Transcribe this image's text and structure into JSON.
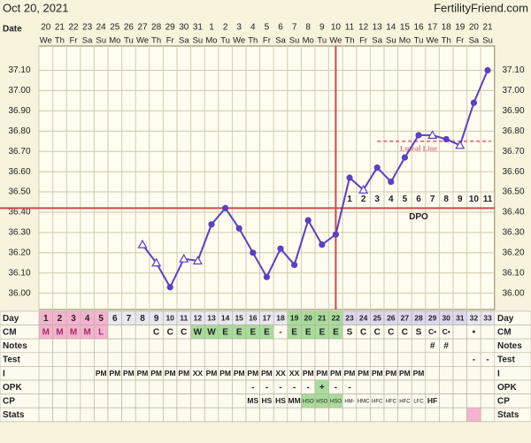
{
  "header": {
    "date": "Oct 20, 2021",
    "site": "FertilityFriend.com",
    "date_label": "Date"
  },
  "chart_data": {
    "type": "line",
    "categories": [
      "20",
      "21",
      "22",
      "23",
      "24",
      "25",
      "26",
      "27",
      "28",
      "29",
      "30",
      "31",
      "1",
      "2",
      "3",
      "4",
      "5",
      "6",
      "7",
      "8",
      "9",
      "10",
      "11",
      "12",
      "13",
      "14",
      "15",
      "16",
      "17",
      "18",
      "19",
      "20",
      "21"
    ],
    "weekdays": [
      "We",
      "Th",
      "Fr",
      "Sa",
      "Su",
      "Mo",
      "Tu",
      "We",
      "Th",
      "Fr",
      "Sa",
      "Su",
      "Mo",
      "Tu",
      "We",
      "Th",
      "Fr",
      "Sa",
      "Su",
      "Mo",
      "Tu",
      "We",
      "Th",
      "Fr",
      "Sa",
      "Su",
      "Mo",
      "Tu",
      "We",
      "Th",
      "Fr",
      "Sa",
      "Su"
    ],
    "values": [
      null,
      null,
      null,
      null,
      null,
      null,
      null,
      36.24,
      36.15,
      36.03,
      36.17,
      36.16,
      36.34,
      36.42,
      36.32,
      36.2,
      36.08,
      36.22,
      36.14,
      36.36,
      36.24,
      36.29,
      36.57,
      36.51,
      36.62,
      36.55,
      36.67,
      36.78,
      36.78,
      36.76,
      36.73,
      36.94,
      37.1
    ],
    "markers": [
      null,
      null,
      null,
      null,
      null,
      null,
      null,
      "triangle",
      "triangle",
      "dot",
      "triangle",
      "triangle",
      "dot",
      "dot",
      "dot",
      "dot",
      "dot",
      "dot",
      "dot",
      "dot",
      "dot",
      "dot",
      "dot",
      "triangle",
      "dot",
      "dot",
      "dot",
      "dot",
      "triangle",
      "dot",
      "triangle",
      "dot",
      "dot"
    ],
    "color": "#5b3fc4",
    "ylim": [
      35.92,
      37.22
    ],
    "yticks": [
      {
        "value": 36.0,
        "label": "36.00"
      },
      {
        "value": 36.1,
        "label": "36.10"
      },
      {
        "value": 36.2,
        "label": "36.20"
      },
      {
        "value": 36.3,
        "label": "36.30"
      },
      {
        "value": 36.4,
        "label": "36.40"
      },
      {
        "value": 36.5,
        "label": "36.50"
      },
      {
        "value": 36.6,
        "label": "36.60"
      },
      {
        "value": 36.7,
        "label": "36.70"
      },
      {
        "value": 36.8,
        "label": "36.80"
      },
      {
        "value": 36.9,
        "label": "36.90"
      },
      {
        "value": 37.0,
        "label": "37.00"
      },
      {
        "value": 37.1,
        "label": "37.10"
      }
    ],
    "grid": true,
    "coverline": 36.42,
    "ovulation_index": 21,
    "dpo_labels": [
      "1",
      "2",
      "3",
      "4",
      "5",
      "6",
      "7",
      "8",
      "9",
      "10",
      "11"
    ],
    "dpo_title": "DPO",
    "luteal_line": {
      "value": 36.75,
      "label": "Luteal Line"
    }
  },
  "table": {
    "rows": [
      {
        "label": "Day",
        "cells": [
          "1",
          "2",
          "3",
          "4",
          "5",
          "6",
          "7",
          "8",
          "9",
          "10",
          "11",
          "12",
          "13",
          "14",
          "15",
          "16",
          "17",
          "18",
          "19",
          "20",
          "21",
          "22",
          "23",
          "24",
          "25",
          "26",
          "27",
          "28",
          "29",
          "30",
          "31",
          "32",
          "33"
        ],
        "fills": [
          "#f5b3cf",
          "#f5b3cf",
          "#f5b3cf",
          "#f5b3cf",
          "#f5b3cf",
          "#e9e7f2",
          "#e9e7f2",
          "#e9e7f2",
          "#e9e7f2",
          "#e9e7f2",
          "#e9e7f2",
          "#e9e7f2",
          "#e9e7f2",
          "#e9e7f2",
          "#e9e7f2",
          "#e9e7f2",
          "#e9e7f2",
          "#e9e7f2",
          "#a8dc9c",
          "#a8dc9c",
          "#a8dc9c",
          "#a8dc9c",
          "#ddd8f0",
          "#ddd8f0",
          "#ddd8f0",
          "#ddd8f0",
          "#ddd8f0",
          "#ddd8f0",
          "#ddd8f0",
          "#ddd8f0",
          "#ddd8f0",
          "#e9e7f2",
          "#e9e7f2"
        ]
      },
      {
        "label": "CM",
        "cells": [
          "M",
          "M",
          "M",
          "M",
          "L",
          null,
          null,
          null,
          "C",
          "C",
          "C",
          "W",
          "W",
          "E",
          "E",
          "E",
          "E",
          "-",
          "E",
          "E",
          "E",
          "E",
          "S",
          "C",
          "C",
          "C",
          "C",
          "S",
          "C•",
          "C•",
          null,
          "•",
          null
        ],
        "fills": [
          "#f5b3cf",
          "#f5b3cf",
          "#f5b3cf",
          "#f5b3cf",
          "#f5b3cf",
          null,
          null,
          null,
          null,
          null,
          null,
          "#a8dc9c",
          "#a8dc9c",
          "#a8dc9c",
          "#a8dc9c",
          "#a8dc9c",
          "#a8dc9c",
          null,
          "#a8dc9c",
          "#a8dc9c",
          "#a8dc9c",
          "#a8dc9c",
          null,
          null,
          null,
          null,
          null,
          null,
          null,
          null,
          null,
          null,
          null
        ]
      },
      {
        "label": "Notes",
        "cells": [
          null,
          null,
          null,
          null,
          null,
          null,
          null,
          null,
          null,
          null,
          null,
          null,
          null,
          null,
          null,
          null,
          null,
          null,
          null,
          null,
          null,
          null,
          null,
          null,
          null,
          null,
          null,
          null,
          "#",
          "#",
          null,
          null,
          null
        ]
      },
      {
        "label": "Test",
        "cells": [
          null,
          null,
          null,
          null,
          null,
          null,
          null,
          null,
          null,
          null,
          null,
          null,
          null,
          null,
          null,
          null,
          null,
          null,
          null,
          null,
          null,
          null,
          null,
          null,
          null,
          null,
          null,
          null,
          null,
          null,
          null,
          "-",
          "-"
        ]
      },
      {
        "label": "I",
        "cells": [
          null,
          null,
          null,
          null,
          "PM",
          "PM",
          "PM",
          "PM",
          "PM",
          "PM",
          "PM",
          "XX",
          "PM",
          "PM",
          "PM",
          "PM",
          "PM",
          "XX",
          "XX",
          "PM",
          "PM",
          "PM",
          "PM",
          "PM",
          "PM",
          "PM",
          "PM",
          "PM",
          null,
          null,
          null,
          null,
          null
        ]
      },
      {
        "label": "OPK",
        "cells": [
          null,
          null,
          null,
          null,
          null,
          null,
          null,
          null,
          null,
          null,
          null,
          null,
          null,
          null,
          null,
          "-",
          "-",
          "-",
          "-",
          "-",
          "+",
          "-",
          "-",
          null,
          null,
          null,
          null,
          null,
          null,
          null,
          null,
          null,
          null
        ],
        "fills": [
          null,
          null,
          null,
          null,
          null,
          null,
          null,
          null,
          null,
          null,
          null,
          null,
          null,
          null,
          null,
          null,
          null,
          null,
          null,
          null,
          "#a8dc9c",
          null,
          null,
          null,
          null,
          null,
          null,
          null,
          null,
          null,
          null,
          null,
          null
        ]
      },
      {
        "label": "CP",
        "cells": [
          null,
          null,
          null,
          null,
          null,
          null,
          null,
          null,
          null,
          null,
          null,
          null,
          null,
          null,
          null,
          "MS",
          "HS",
          "HS",
          "MM",
          "HSO",
          "HSO",
          "HSO",
          "HM-",
          "HMC",
          "HFC",
          "HFC",
          "HFC",
          "LFC",
          "HF",
          null,
          null,
          null,
          null
        ],
        "fills": [
          null,
          null,
          null,
          null,
          null,
          null,
          null,
          null,
          null,
          null,
          null,
          null,
          null,
          null,
          null,
          null,
          null,
          null,
          null,
          "#a8dc9c",
          "#a8dc9c",
          "#a8dc9c",
          null,
          null,
          null,
          null,
          null,
          null,
          null,
          null,
          null,
          null,
          null
        ]
      },
      {
        "label": "Stats",
        "cells": [
          null,
          null,
          null,
          null,
          null,
          null,
          null,
          null,
          null,
          null,
          null,
          null,
          null,
          null,
          null,
          null,
          null,
          null,
          null,
          null,
          null,
          null,
          null,
          null,
          null,
          null,
          null,
          null,
          null,
          null,
          null,
          null,
          null
        ],
        "fills": [
          null,
          null,
          null,
          null,
          null,
          null,
          null,
          null,
          null,
          null,
          null,
          null,
          null,
          null,
          null,
          null,
          null,
          null,
          null,
          null,
          null,
          null,
          null,
          null,
          null,
          null,
          null,
          null,
          null,
          null,
          null,
          "#f5b3cf",
          null
        ]
      }
    ]
  }
}
